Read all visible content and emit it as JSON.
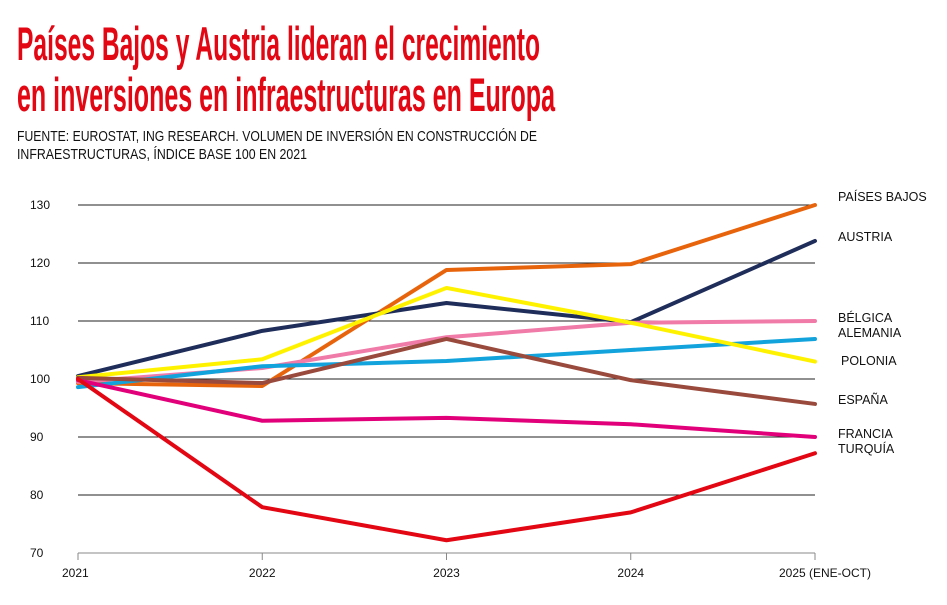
{
  "title_lines": [
    "Países Bajos y Austria lideran el crecimiento",
    "en inversiones en infraestructuras en Europa"
  ],
  "subtitle_lines": [
    "FUENTE: EUROSTAT, ING RESEARCH. VOLUMEN DE INVERSIÓN EN CONSTRUCCIÓN DE",
    "INFRAESTRUCTURAS, ÍNDICE BASE 100 EN 2021"
  ],
  "colors": {
    "title": "#e30613"
  },
  "chart_data": {
    "type": "line",
    "title": "Países Bajos y Austria lideran el crecimiento en inversiones en infraestructuras en Europa",
    "xlabel": "",
    "ylabel": "",
    "x": [
      "2021",
      "2022",
      "2023",
      "2024",
      "2025 (ENE-OCT)"
    ],
    "ylim": [
      70,
      130
    ],
    "yticks": [
      "70",
      "80",
      "90",
      "100",
      "110",
      "120",
      "130"
    ],
    "grid": "horizontal",
    "legend": "right, direct labels",
    "series": [
      {
        "name": "PAÍSES BAJOS",
        "color": "#e8640c",
        "values": [
          99.3,
          98.8,
          118.8,
          119.8,
          130
        ]
      },
      {
        "name": "AUSTRIA",
        "color": "#1f2d5a",
        "values": [
          100.5,
          108.3,
          113.1,
          109.8,
          123.8
        ]
      },
      {
        "name": "BÉLGICA",
        "color": "#f07aa8",
        "values": [
          99.5,
          101.9,
          107.2,
          109.7,
          110
        ]
      },
      {
        "name": "ALEMANIA",
        "color": "#12a3dc",
        "values": [
          98.6,
          102.2,
          103.1,
          105,
          106.9
        ]
      },
      {
        "name": "POLONIA",
        "color": "#fff200",
        "values": [
          100.3,
          103.4,
          115.7,
          109.7,
          103
        ]
      },
      {
        "name": "ESPAÑA",
        "color": "#9a4a3c",
        "values": [
          100.2,
          99.3,
          106.9,
          99.8,
          95.7
        ]
      },
      {
        "name": "FRANCIA",
        "color": "#e2007a",
        "values": [
          99.8,
          92.8,
          93.3,
          92.2,
          90
        ]
      },
      {
        "name": "TURQUÍA",
        "color": "#e30613",
        "values": [
          100,
          77.9,
          72.2,
          77,
          87.2
        ]
      }
    ]
  }
}
